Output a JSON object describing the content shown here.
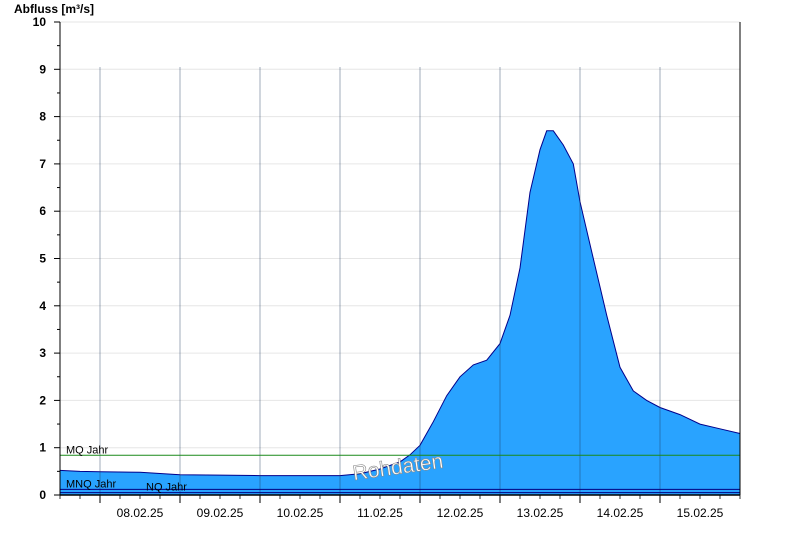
{
  "chart_data": {
    "type": "area",
    "ylabel": "Abfluss [m³/s]",
    "ylim": [
      0,
      10
    ],
    "yticks": [
      0,
      1,
      2,
      3,
      4,
      5,
      6,
      7,
      8,
      9,
      10
    ],
    "x_range_days": [
      "07.02.25 12:00",
      "15.02.25 24:00"
    ],
    "day_labels": [
      "08.02.25",
      "09.02.25",
      "10.02.25",
      "11.02.25",
      "12.02.25",
      "13.02.25",
      "14.02.25",
      "15.02.25"
    ],
    "grid": true,
    "watermark": "Rohdaten",
    "reference_lines": [
      {
        "label": "MQ Jahr",
        "value": 0.84,
        "color": "#1a8a1a"
      },
      {
        "label": "MNQ Jahr",
        "value": 0.12,
        "color": "#000080"
      },
      {
        "label": "NQ Jahr",
        "value": 0.05,
        "color": "#000080"
      }
    ],
    "series": [
      {
        "fill": "#29a3ff",
        "stroke": "#00008b",
        "points": [
          [
            "07.02.25 12:00",
            0.52
          ],
          [
            "07.02.25 18:00",
            0.5
          ],
          [
            "08.02.25 00:00",
            0.49
          ],
          [
            "08.02.25 12:00",
            0.48
          ],
          [
            "09.02.25 00:00",
            0.43
          ],
          [
            "09.02.25 12:00",
            0.42
          ],
          [
            "10.02.25 00:00",
            0.41
          ],
          [
            "10.02.25 12:00",
            0.41
          ],
          [
            "11.02.25 00:00",
            0.41
          ],
          [
            "11.02.25 06:00",
            0.45
          ],
          [
            "11.02.25 12:00",
            0.55
          ],
          [
            "11.02.25 18:00",
            0.7
          ],
          [
            "11.02.25 21:00",
            0.85
          ],
          [
            "12.02.25 00:00",
            1.05
          ],
          [
            "12.02.25 04:00",
            1.55
          ],
          [
            "12.02.25 08:00",
            2.1
          ],
          [
            "12.02.25 12:00",
            2.5
          ],
          [
            "12.02.25 16:00",
            2.75
          ],
          [
            "12.02.25 20:00",
            2.85
          ],
          [
            "13.02.25 00:00",
            3.2
          ],
          [
            "13.02.25 03:00",
            3.8
          ],
          [
            "13.02.25 06:00",
            4.8
          ],
          [
            "13.02.25 09:00",
            6.4
          ],
          [
            "13.02.25 12:00",
            7.3
          ],
          [
            "13.02.25 14:00",
            7.7
          ],
          [
            "13.02.25 16:00",
            7.7
          ],
          [
            "13.02.25 19:00",
            7.4
          ],
          [
            "13.02.25 22:00",
            7.0
          ],
          [
            "14.02.25 00:00",
            6.2
          ],
          [
            "14.02.25 04:00",
            5.0
          ],
          [
            "14.02.25 08:00",
            3.8
          ],
          [
            "14.02.25 12:00",
            2.7
          ],
          [
            "14.02.25 16:00",
            2.2
          ],
          [
            "14.02.25 20:00",
            2.0
          ],
          [
            "15.02.25 00:00",
            1.85
          ],
          [
            "15.02.25 06:00",
            1.7
          ],
          [
            "15.02.25 12:00",
            1.5
          ],
          [
            "15.02.25 18:00",
            1.4
          ],
          [
            "15.02.25 24:00",
            1.3
          ]
        ]
      }
    ]
  }
}
